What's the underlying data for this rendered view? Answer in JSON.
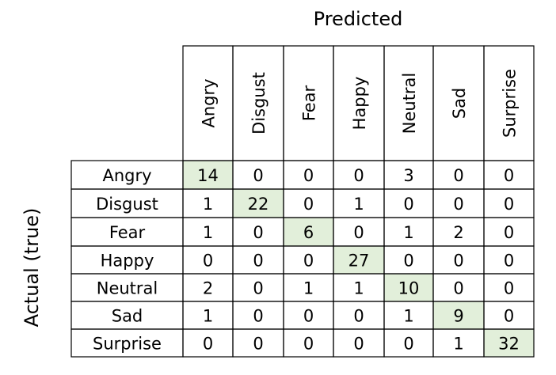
{
  "chart_data": {
    "type": "heatmap",
    "xlabel": "Predicted",
    "ylabel": "Actual (true)",
    "x_categories": [
      "Angry",
      "Disgust",
      "Fear",
      "Happy",
      "Neutral",
      "Sad",
      "Surprise"
    ],
    "y_categories": [
      "Angry",
      "Disgust",
      "Fear",
      "Happy",
      "Neutral",
      "Sad",
      "Surprise"
    ],
    "matrix": [
      [
        14,
        0,
        0,
        0,
        3,
        0,
        0
      ],
      [
        1,
        22,
        0,
        1,
        0,
        0,
        0
      ],
      [
        1,
        0,
        6,
        0,
        1,
        2,
        0
      ],
      [
        0,
        0,
        0,
        27,
        0,
        0,
        0
      ],
      [
        2,
        0,
        1,
        1,
        10,
        0,
        0
      ],
      [
        1,
        0,
        0,
        0,
        1,
        9,
        0
      ],
      [
        0,
        0,
        0,
        0,
        0,
        1,
        32
      ]
    ],
    "diagonal_highlight_color": "#e2efda",
    "grid_color": "#000000"
  }
}
